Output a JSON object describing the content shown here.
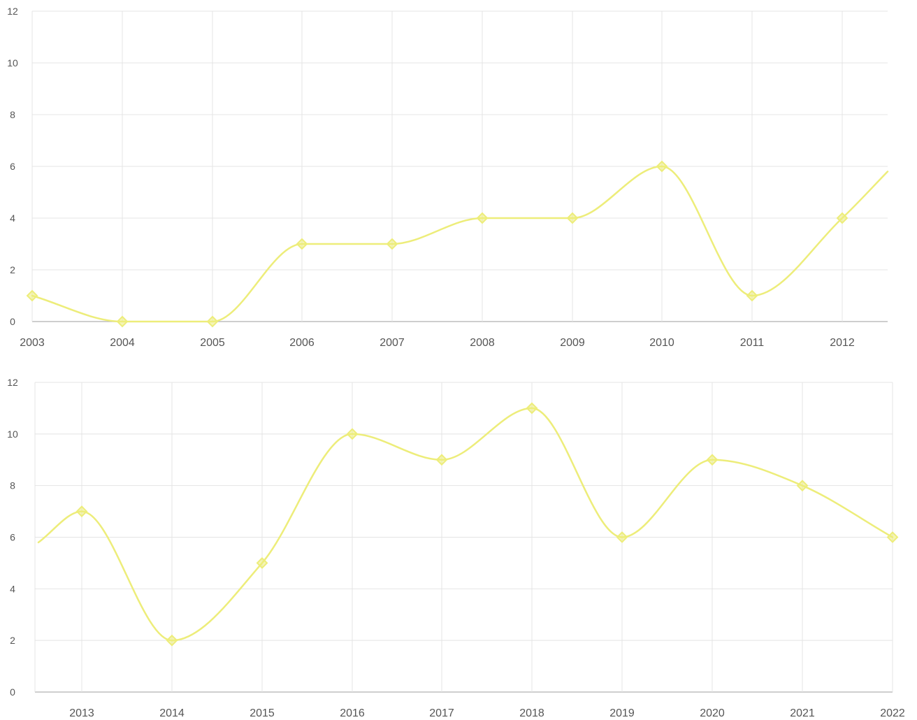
{
  "chart_data": [
    {
      "type": "line",
      "x": [
        "2003",
        "2004",
        "2005",
        "2006",
        "2007",
        "2008",
        "2009",
        "2010",
        "2011",
        "2012"
      ],
      "series": [
        {
          "values": [
            1,
            0,
            0,
            3,
            3,
            4,
            4,
            6,
            1,
            4
          ],
          "trailing_value": 5.8
        }
      ],
      "ylim": [
        0,
        12
      ],
      "yticks": [
        "0",
        "2",
        "4",
        "6",
        "8",
        "10",
        "12"
      ],
      "grid": true,
      "legend": "none",
      "color": "#eded7a"
    },
    {
      "type": "line",
      "x": [
        "2013",
        "2014",
        "2015",
        "2016",
        "2017",
        "2018",
        "2019",
        "2020",
        "2021",
        "2022"
      ],
      "series": [
        {
          "leading_value": 5.8,
          "values": [
            7,
            2,
            5,
            10,
            9,
            11,
            6,
            9,
            8,
            6
          ]
        }
      ],
      "ylim": [
        0,
        12
      ],
      "yticks": [
        "0",
        "2",
        "4",
        "6",
        "8",
        "10",
        "12"
      ],
      "grid": true,
      "legend": "none",
      "color": "#eded7a"
    }
  ]
}
